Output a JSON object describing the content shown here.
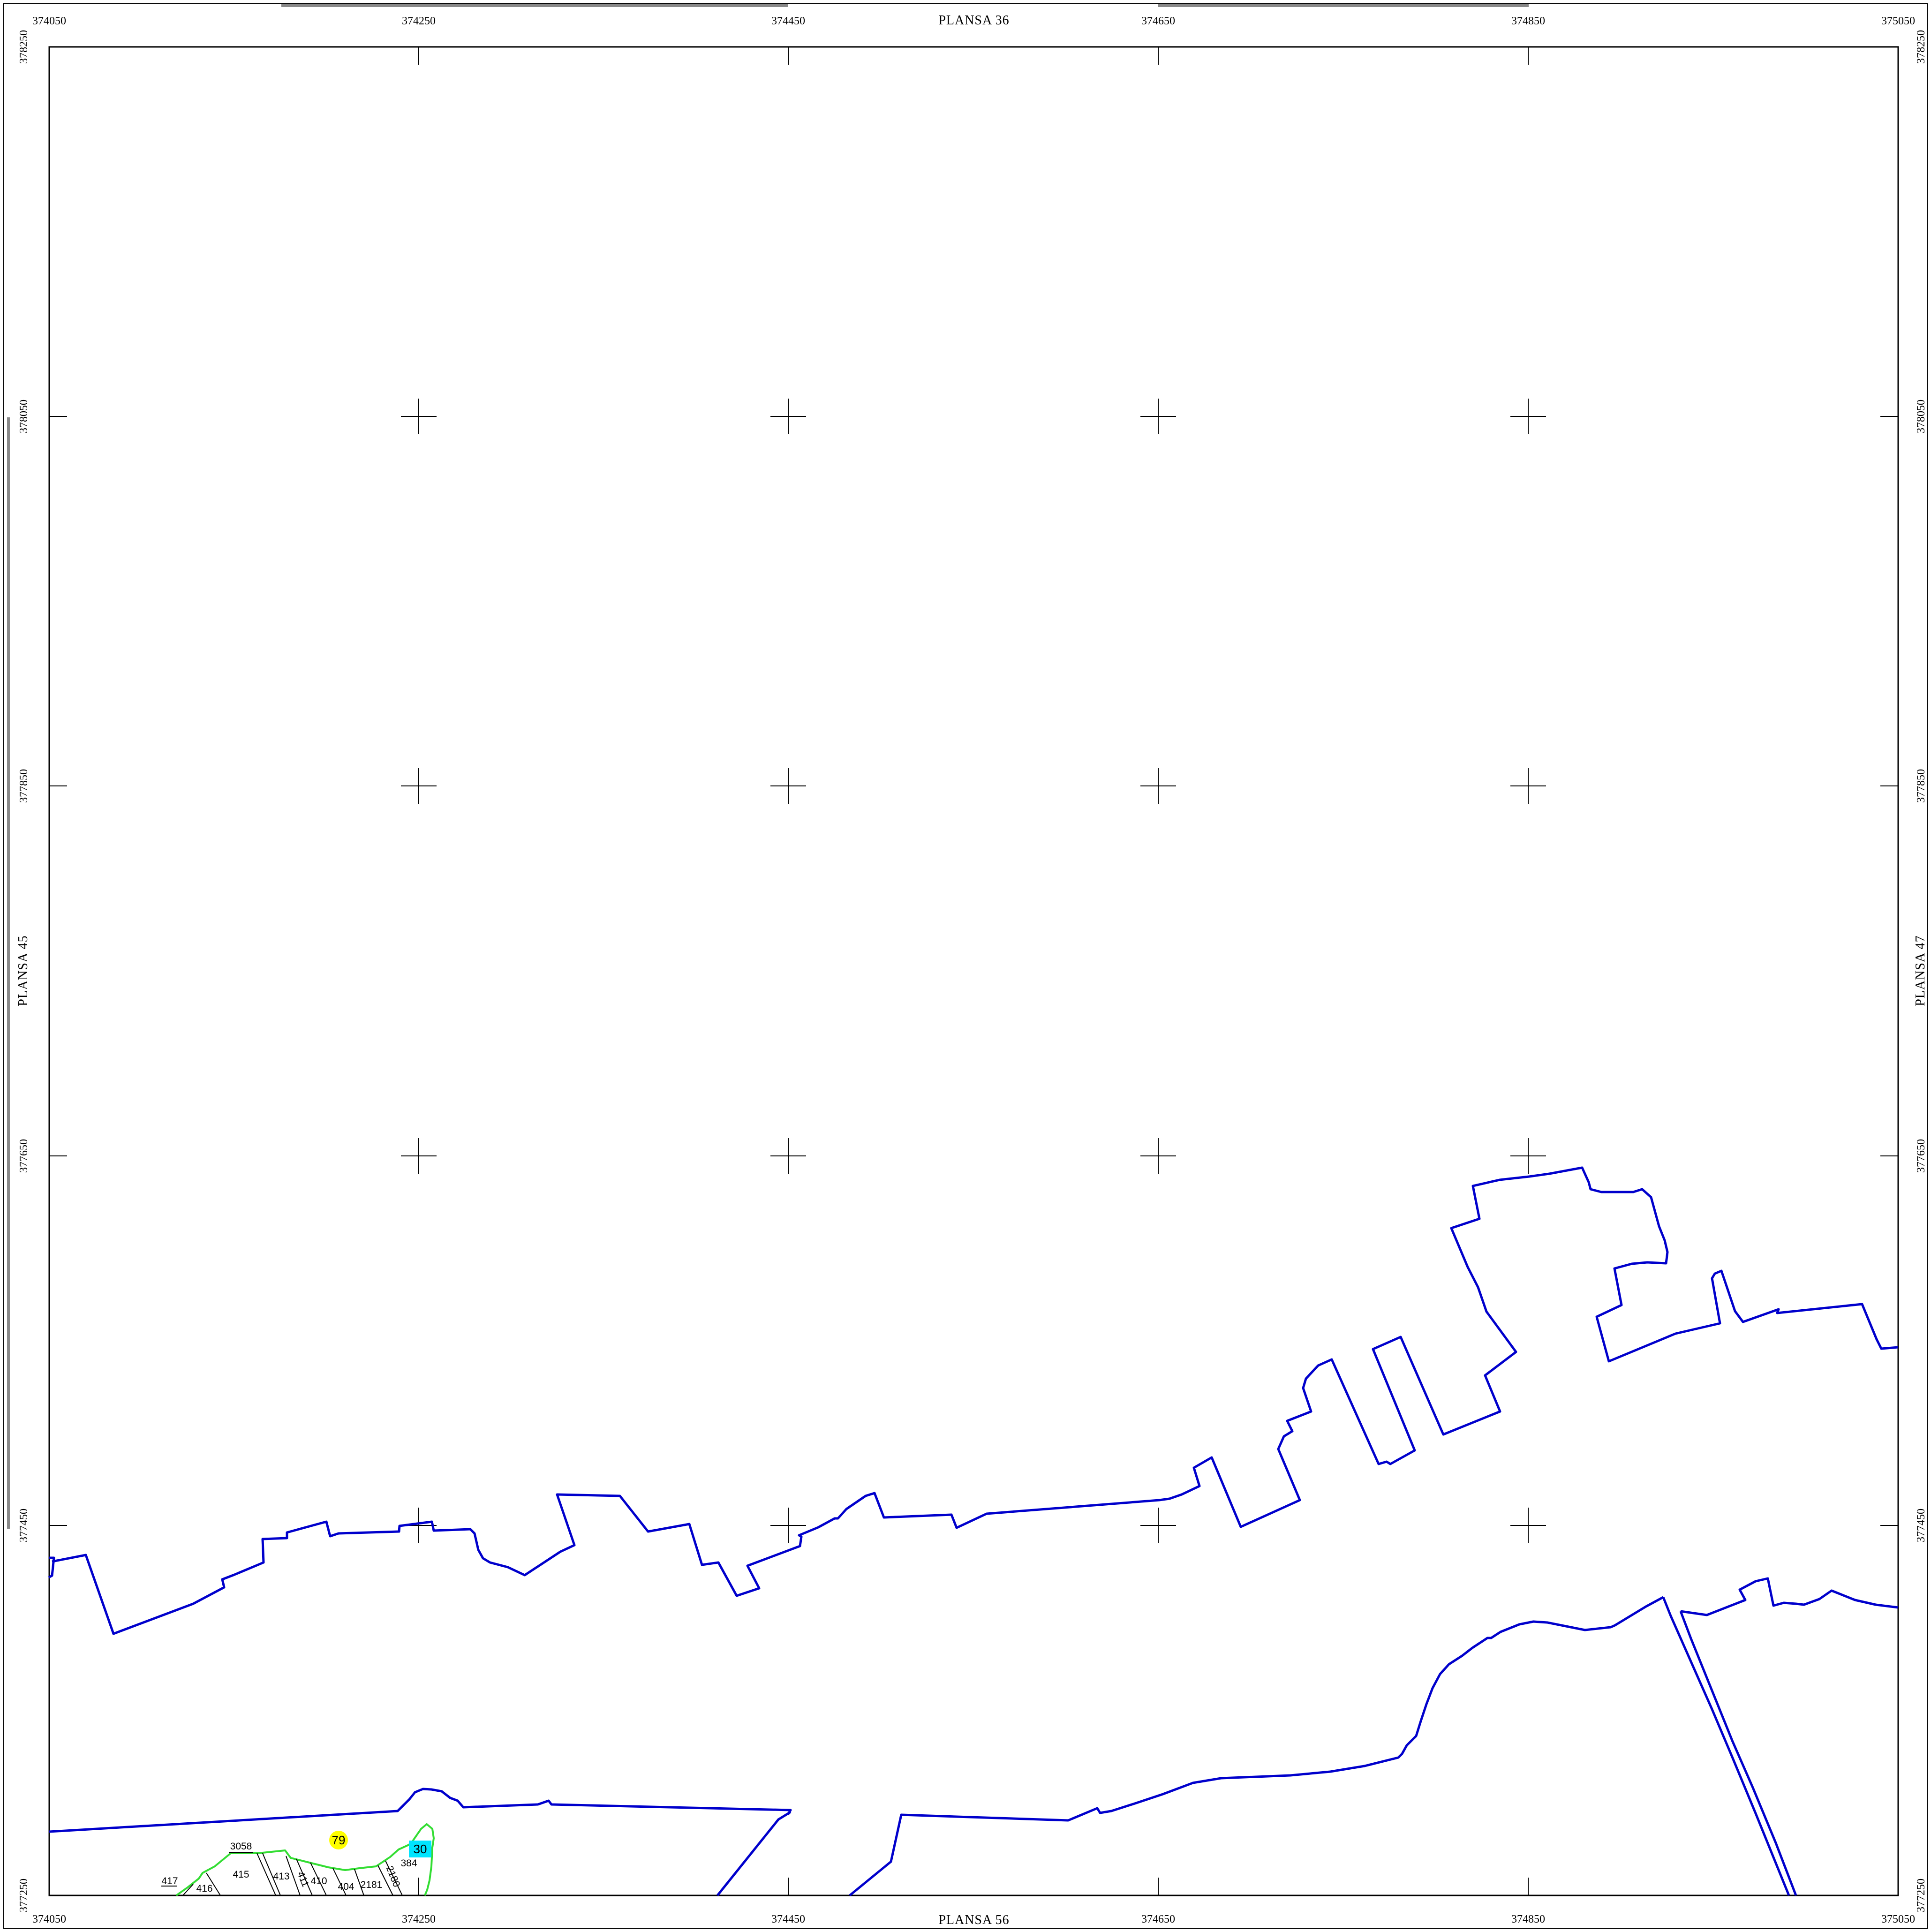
{
  "sheets": {
    "top": "PLANSA  36",
    "bottom": "PLANSA  56",
    "left": "PLANSA  45",
    "right": "PLANSA  47"
  },
  "x_ticks": [
    "374050",
    "374250",
    "374450",
    "374650",
    "374850",
    "375050"
  ],
  "y_ticks": [
    "378250",
    "378050",
    "377850",
    "377650",
    "377450",
    "377250"
  ],
  "parcels": [
    "3058",
    "415",
    "413",
    "411",
    "410",
    "404",
    "2181",
    "2180",
    "417",
    "416",
    "384"
  ],
  "highlights": {
    "yellow": "79",
    "cyan": "30"
  },
  "colors": {
    "boundary": "#0000cc",
    "cadastral": "#33dd33",
    "yellow": "#ffff00",
    "cyan": "#00e5ff",
    "frame": "#000000"
  }
}
